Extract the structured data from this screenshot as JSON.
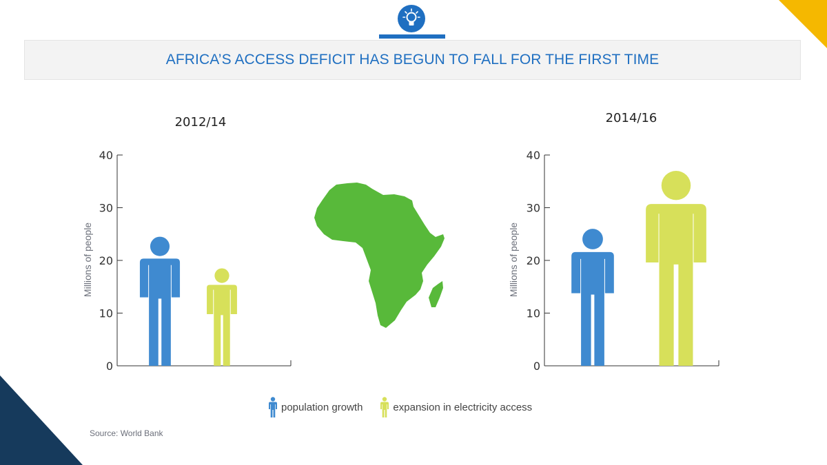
{
  "header": {
    "title": "AFRICA’S ACCESS DEFICIT HAS BEGUN TO FALL FOR THE FIRST TIME",
    "logo_icon": "lightbulb-icon"
  },
  "colors": {
    "population": "#3f8ad0",
    "electricity": "#d7e05a",
    "africa": "#58b93a",
    "title": "#1f6fc1",
    "accent_corner": "#f5b800",
    "dark_corner": "#163a5c"
  },
  "chart_data": [
    {
      "type": "bar",
      "title": "2012/14",
      "ylabel": "Millions of people",
      "ylim": [
        0,
        40
      ],
      "yticks": [
        0,
        10,
        20,
        30,
        40
      ],
      "series": [
        {
          "name": "population growth",
          "values": [
            24.5
          ]
        },
        {
          "name": "expansion in electricity access",
          "values": [
            18.5
          ]
        }
      ]
    },
    {
      "type": "bar",
      "title": "2014/16",
      "ylabel": "Millions of people",
      "ylim": [
        0,
        40
      ],
      "yticks": [
        0,
        10,
        20,
        30,
        40
      ],
      "series": [
        {
          "name": "population growth",
          "values": [
            26
          ]
        },
        {
          "name": "expansion in electricity access",
          "values": [
            37
          ]
        }
      ]
    }
  ],
  "legend": [
    {
      "label": "population growth",
      "icon": "person-icon-blue"
    },
    {
      "label": "expansion in electricity access",
      "icon": "person-icon-green"
    }
  ],
  "source": "Source: World Bank"
}
